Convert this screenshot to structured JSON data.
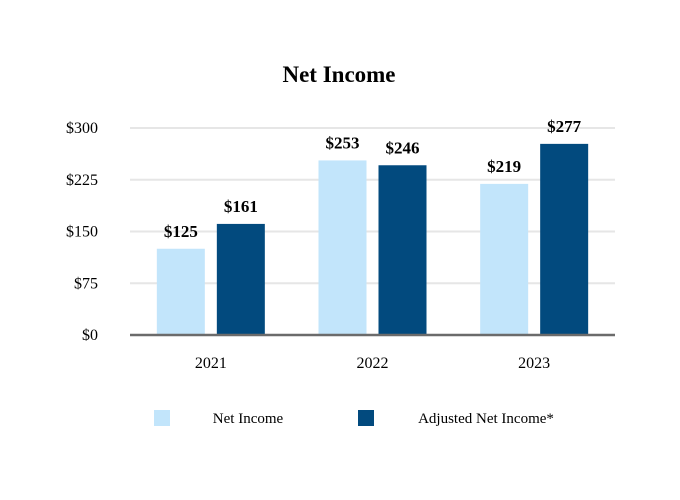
{
  "chart_data": {
    "type": "bar",
    "title": "Net Income",
    "categories": [
      "2021",
      "2022",
      "2023"
    ],
    "series": [
      {
        "name": "Net Income",
        "values": [
          125,
          253,
          219
        ],
        "labels": [
          "$125",
          "$253",
          "$219"
        ],
        "color": "#c2e5fb"
      },
      {
        "name": "Adjusted Net Income*",
        "values": [
          161,
          246,
          277
        ],
        "labels": [
          "$161",
          "$246",
          "$277"
        ],
        "color": "#024a7e"
      }
    ],
    "ylim": [
      0,
      300
    ],
    "yticks": [
      0,
      75,
      150,
      225,
      300
    ],
    "ytick_labels": [
      "$0",
      "$75",
      "$150",
      "$225",
      "$300"
    ],
    "grid": true,
    "legend_position": "bottom"
  }
}
